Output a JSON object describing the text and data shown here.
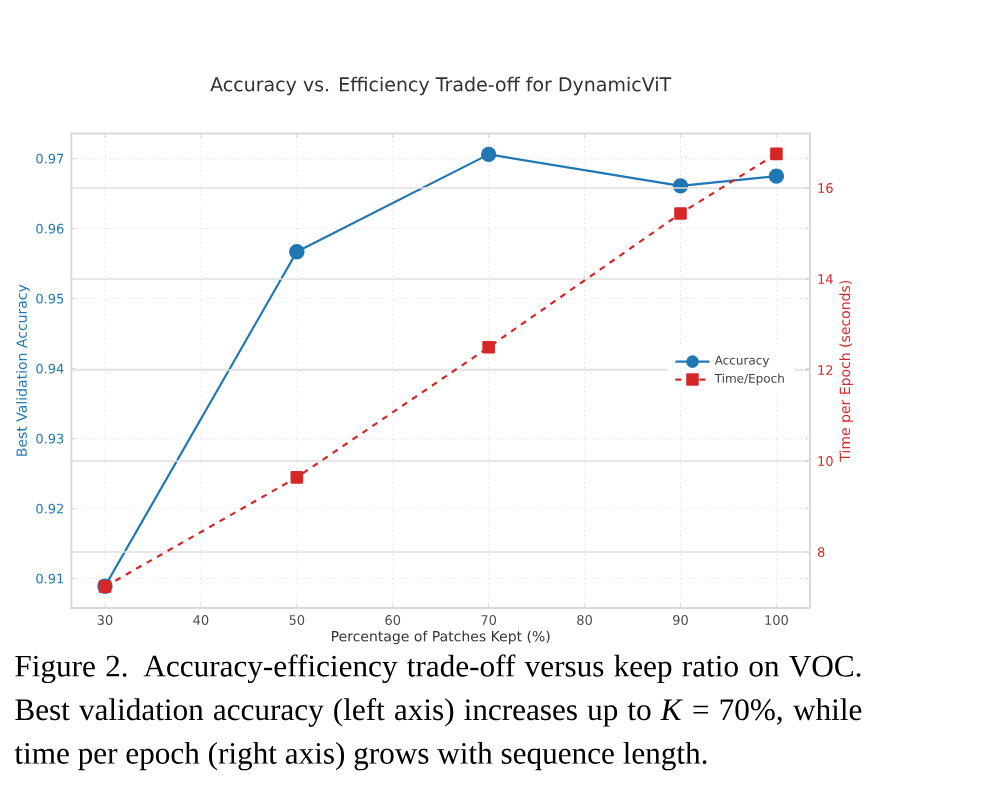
{
  "chart_data": {
    "type": "line",
    "title": "Accuracy vs. Efficiency Trade-off for DynamicViT",
    "xlabel": "Percentage of Patches Kept (%)",
    "ylabel": "Best Validation Accuracy",
    "y2label": "Time per Epoch (seconds)",
    "x": [
      30,
      50,
      70,
      90,
      100
    ],
    "series": [
      {
        "name": "Accuracy",
        "color": "#1f77b4",
        "values": [
          0.9089,
          0.9567,
          0.9706,
          0.9661,
          0.9675
        ],
        "marker": "circle",
        "line_style": "solid"
      },
      {
        "name": "Time/Epoch",
        "color": "#d62728",
        "values": [
          7.24,
          9.64,
          12.5,
          15.44,
          16.75
        ],
        "axis": "y2",
        "marker": "square",
        "line_style": "dashed"
      }
    ],
    "xlim": [
      26.5,
      103.5
    ],
    "xticks": [
      30,
      40,
      50,
      60,
      70,
      80,
      90,
      100
    ],
    "ylim": [
      0.9058,
      0.9736
    ],
    "yticks": [
      0.91,
      0.92,
      0.93,
      0.94,
      0.95,
      0.96,
      0.97
    ],
    "y2lim": [
      6.77,
      17.2
    ],
    "y2ticks": [
      8,
      10,
      12,
      14,
      16
    ],
    "grid": true,
    "legend": "right",
    "annotations": [
      "Figure 2. Accuracy-efficiency trade-off versus keep ratio on VOC. Best validation accuracy (left axis) increases up to *K* = 70%, while time per epoch (right axis) grows with sequence length."
    ]
  }
}
